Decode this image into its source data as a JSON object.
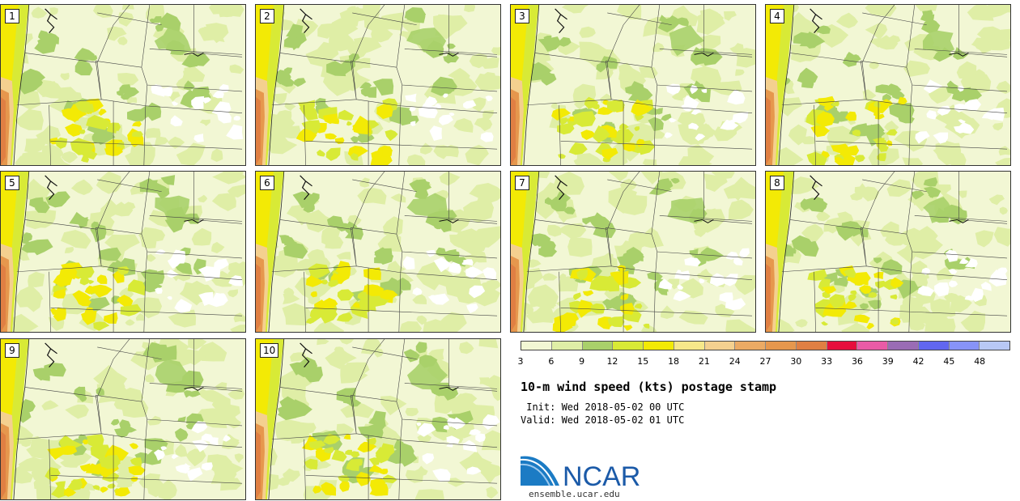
{
  "panels": [
    {
      "label": "1"
    },
    {
      "label": "2"
    },
    {
      "label": "3"
    },
    {
      "label": "4"
    },
    {
      "label": "5"
    },
    {
      "label": "6"
    },
    {
      "label": "7"
    },
    {
      "label": "8"
    },
    {
      "label": "9"
    },
    {
      "label": "10"
    }
  ],
  "colorbar": {
    "ticks": [
      "3",
      "6",
      "9",
      "12",
      "15",
      "18",
      "21",
      "24",
      "27",
      "30",
      "33",
      "36",
      "39",
      "42",
      "45",
      "48"
    ],
    "colors": [
      "#f2f7d4",
      "#dfeea6",
      "#a9d06a",
      "#d8ea36",
      "#f3ea05",
      "#f7e88a",
      "#f4d08f",
      "#ebaa64",
      "#e6974d",
      "#e07f43",
      "#e60e3c",
      "#e95ba6",
      "#9a6cb5",
      "#6166f0",
      "#8793f8",
      "#b8c8f5"
    ]
  },
  "title": "10-m wind speed (kts) postage stamp",
  "init": " Init: Wed 2018-05-02 00 UTC",
  "valid": "Valid: Wed 2018-05-02 01 UTC",
  "logo": {
    "text": "NCAR",
    "url": "ensemble.ucar.edu",
    "color": "#1b5aa8"
  },
  "map_colors": {
    "background": "#f2f7d4",
    "light": "#dfeea6",
    "medium": "#a9d06a",
    "yellowgreen": "#d8ea36",
    "yellow": "#f3ea05",
    "white": "#ffffff",
    "orange": "#e6974d",
    "peach": "#f4d08f",
    "darkorange": "#e07f43"
  }
}
